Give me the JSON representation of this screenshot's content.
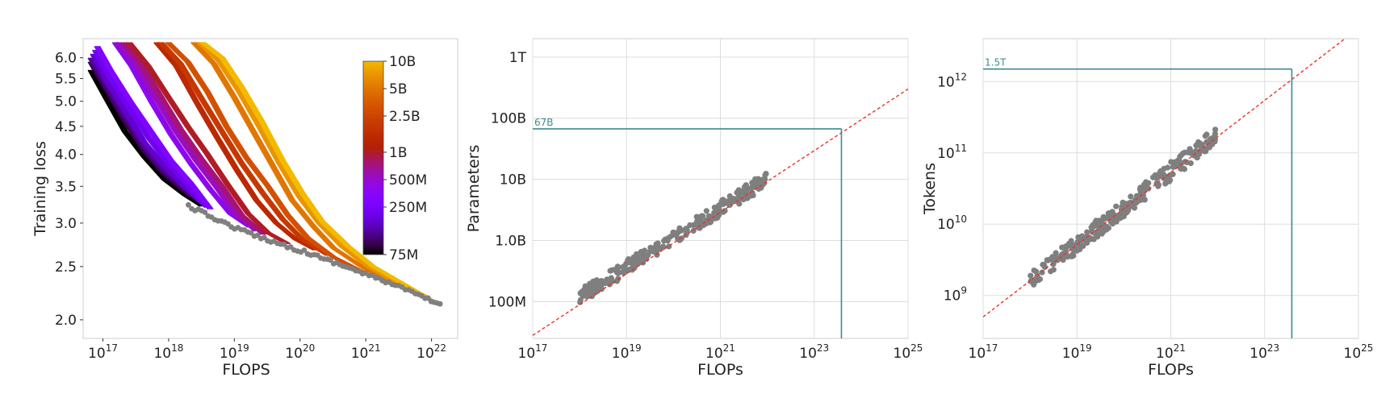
{
  "chart_data": [
    {
      "type": "line",
      "xlabel": "FLOPS",
      "ylabel": "Training loss",
      "x_scale": "log",
      "y_scale": "log",
      "xlim": [
        5e+16,
        2.5e+22
      ],
      "ylim": [
        1.85,
        6.5
      ],
      "grid": false,
      "x_ticks": [
        {
          "value": 1e+17,
          "base": "10",
          "exp": "17"
        },
        {
          "value": 1e+18,
          "base": "10",
          "exp": "18"
        },
        {
          "value": 1e+19,
          "base": "10",
          "exp": "19"
        },
        {
          "value": 1e+20,
          "base": "10",
          "exp": "20"
        },
        {
          "value": 1e+21,
          "base": "10",
          "exp": "21"
        },
        {
          "value": 1e+22,
          "base": "10",
          "exp": "22"
        }
      ],
      "y_ticks": [
        {
          "value": 2.0,
          "label": "2.0"
        },
        {
          "value": 2.5,
          "label": "2.5"
        },
        {
          "value": 3.0,
          "label": "3.0"
        },
        {
          "value": 3.5,
          "label": "3.5"
        },
        {
          "value": 4.0,
          "label": "4.0"
        },
        {
          "value": 4.5,
          "label": "4.5"
        },
        {
          "value": 5.0,
          "label": "5.0"
        },
        {
          "value": 5.5,
          "label": "5.5"
        },
        {
          "value": 6.0,
          "label": "6.0"
        }
      ],
      "colorbar": {
        "scale": "log",
        "range": [
          75000000.0,
          10000000000.0
        ],
        "colormap": "gnuplot",
        "ticks": [
          {
            "value": 10000000000.0,
            "label": "10B"
          },
          {
            "value": 5000000000.0,
            "label": "5B"
          },
          {
            "value": 2500000000.0,
            "label": "2.5B"
          },
          {
            "value": 1000000000.0,
            "label": "1B"
          },
          {
            "value": 500000000.0,
            "label": "500M"
          },
          {
            "value": 250000000.0,
            "label": "250M"
          },
          {
            "value": 75000000.0,
            "label": "75M"
          }
        ]
      },
      "series": [
        {
          "params": 75000000.0,
          "x": [
            6e+16,
            1e+17,
            2e+17,
            4e+17,
            8e+17,
            1.6e+18,
            3e+18
          ],
          "y": [
            5.7,
            5.1,
            4.4,
            3.95,
            3.6,
            3.38,
            3.22
          ]
        },
        {
          "params": 100000000.0,
          "x": [
            6e+16,
            1e+17,
            2e+17,
            4e+17,
            8e+17,
            1.6e+18,
            3.2e+18
          ],
          "y": [
            5.9,
            5.3,
            4.6,
            4.05,
            3.68,
            3.43,
            3.24
          ]
        },
        {
          "params": 130000000.0,
          "x": [
            6e+16,
            1e+17,
            2e+17,
            4e+17,
            8e+17,
            1.6e+18,
            3.3e+18
          ],
          "y": [
            6.0,
            5.4,
            4.7,
            4.12,
            3.73,
            3.47,
            3.23
          ]
        },
        {
          "params": 170000000.0,
          "x": [
            6.5e+16,
            1e+17,
            2e+17,
            4e+17,
            8e+17,
            1.6e+18,
            3.4e+18
          ],
          "y": [
            6.1,
            5.5,
            4.8,
            4.2,
            3.8,
            3.5,
            3.22
          ]
        },
        {
          "params": 220000000.0,
          "x": [
            7e+16,
            1.1e+17,
            2.2e+17,
            4.5e+17,
            9e+17,
            1.8e+18,
            3.6e+18
          ],
          "y": [
            6.2,
            5.6,
            4.9,
            4.3,
            3.85,
            3.52,
            3.2
          ]
        },
        {
          "params": 300000000.0,
          "x": [
            7.5e+16,
            1.2e+17,
            2.4e+17,
            5e+17,
            1e+18,
            2e+18,
            4e+18
          ],
          "y": [
            6.3,
            5.7,
            5.0,
            4.4,
            3.9,
            3.55,
            3.18
          ]
        },
        {
          "params": 400000000.0,
          "x": [
            1.4e+17,
            2.5e+17,
            5e+17,
            1e+18,
            2e+18,
            4e+18,
            8e+18,
            1.6e+19
          ],
          "y": [
            6.4,
            5.8,
            5.0,
            4.35,
            3.85,
            3.45,
            3.12,
            2.95
          ]
        },
        {
          "params": 550000000.0,
          "x": [
            1.6e+17,
            3e+17,
            6e+17,
            1.2e+18,
            2.4e+18,
            5e+18,
            1e+19,
            2e+19
          ],
          "y": [
            6.4,
            5.8,
            5.05,
            4.4,
            3.9,
            3.48,
            3.1,
            2.9
          ]
        },
        {
          "params": 750000000.0,
          "x": [
            1.9e+17,
            3.5e+17,
            7e+17,
            1.4e+18,
            2.8e+18,
            6e+18,
            1.2e+19,
            2.6e+19
          ],
          "y": [
            6.4,
            5.85,
            5.1,
            4.45,
            3.95,
            3.5,
            3.1,
            2.86
          ]
        },
        {
          "params": 1000000000.0,
          "x": [
            2.3e+17,
            4.5e+17,
            9e+17,
            1.8e+18,
            3.6e+18,
            7e+18,
            1.5e+19,
            3e+19,
            6e+19
          ],
          "y": [
            6.4,
            5.8,
            5.1,
            4.5,
            4.0,
            3.55,
            3.12,
            2.88,
            2.75
          ]
        },
        {
          "params": 1400000000.0,
          "x": [
            6e+17,
            1.2e+18,
            2.4e+18,
            5e+18,
            1e+19,
            2e+19,
            4e+19,
            8e+19,
            1.6e+20
          ],
          "y": [
            6.4,
            5.8,
            5.0,
            4.3,
            3.75,
            3.3,
            3.0,
            2.8,
            2.68
          ]
        },
        {
          "params": 2000000000.0,
          "x": [
            7e+17,
            1.4e+18,
            2.8e+18,
            6e+18,
            1.2e+19,
            2.5e+19,
            5e+19,
            1e+20,
            2.5e+20
          ],
          "y": [
            6.4,
            5.85,
            5.1,
            4.4,
            3.85,
            3.4,
            3.05,
            2.8,
            2.62
          ]
        },
        {
          "params": 3000000000.0,
          "x": [
            9e+17,
            1.8e+18,
            3.6e+18,
            7e+18,
            1.4e+19,
            3e+19,
            6e+19,
            1.2e+20,
            3e+20,
            8e+20
          ],
          "y": [
            6.4,
            5.9,
            5.2,
            4.5,
            3.95,
            3.5,
            3.1,
            2.82,
            2.6,
            2.45
          ]
        },
        {
          "params": 5000000000.0,
          "x": [
            2.2e+18,
            4.5e+18,
            9e+18,
            1.8e+19,
            3.6e+19,
            7e+19,
            1.5e+20,
            3e+20,
            8e+20,
            2e+21,
            5e+21
          ],
          "y": [
            6.4,
            5.85,
            5.1,
            4.4,
            3.8,
            3.3,
            2.95,
            2.7,
            2.5,
            2.35,
            2.25
          ]
        },
        {
          "params": 7000000000.0,
          "x": [
            2.7e+18,
            5.5e+18,
            1.1e+19,
            2.2e+19,
            4.5e+19,
            9e+19,
            1.8e+20,
            4e+20,
            1e+21,
            3e+21,
            8e+21
          ],
          "y": [
            6.4,
            5.9,
            5.2,
            4.5,
            3.85,
            3.35,
            3.0,
            2.72,
            2.5,
            2.32,
            2.2
          ]
        },
        {
          "params": 10000000000.0,
          "x": [
            3e+18,
            6e+18,
            1.2e+19,
            2.4e+19,
            5e+19,
            1e+20,
            2e+20,
            5e+20,
            1.2e+21,
            4e+21,
            1.2e+22
          ],
          "y": [
            6.4,
            6.0,
            5.3,
            4.6,
            3.9,
            3.4,
            3.02,
            2.72,
            2.5,
            2.3,
            2.13
          ]
        }
      ],
      "frontier": {
        "x": [
          2e+18,
          4e+18,
          8e+18,
          1.6e+19,
          3.2e+19,
          6.4e+19,
          1.3e+20,
          2.6e+20,
          5e+20,
          1e+21,
          2e+21,
          4e+21,
          8e+21,
          1.5e+22
        ],
        "y": [
          3.22,
          3.1,
          2.98,
          2.88,
          2.8,
          2.72,
          2.65,
          2.57,
          2.5,
          2.42,
          2.35,
          2.27,
          2.19,
          2.12
        ]
      }
    },
    {
      "type": "scatter",
      "xlabel": "FLOPs",
      "ylabel": "Parameters",
      "x_scale": "log",
      "y_scale": "log",
      "xlim": [
        1e+17,
        1e+25
      ],
      "ylim": [
        25000000.0,
        2000000000000.0
      ],
      "grid": true,
      "x_ticks": [
        {
          "value": 1e+17,
          "base": "10",
          "exp": "17"
        },
        {
          "value": 1e+19,
          "base": "10",
          "exp": "19"
        },
        {
          "value": 1e+21,
          "base": "10",
          "exp": "21"
        },
        {
          "value": 1e+23,
          "base": "10",
          "exp": "23"
        },
        {
          "value": 1e+25,
          "base": "10",
          "exp": "25"
        }
      ],
      "y_ticks": [
        {
          "value": 100000000.0,
          "label": "100M"
        },
        {
          "value": 1000000000.0,
          "label": "1.0B"
        },
        {
          "value": 10000000000.0,
          "label": "10B"
        },
        {
          "value": 100000000000.0,
          "label": "100B"
        },
        {
          "value": 1000000000000.0,
          "label": "1T"
        }
      ],
      "fit": {
        "x": [
          1e+17,
          1e+25
        ],
        "y": [
          28000000.0,
          300000000000.0
        ]
      },
      "projection": {
        "x": 3.8e+23,
        "y": 67000000000.0,
        "label": "67B"
      },
      "points": {
        "x_range": [
          1e+18,
          1e+22
        ],
        "y_at_x_min": 120000000.0,
        "y_at_x_max": 10000000000.0,
        "count": 260,
        "spread": 0.12
      }
    },
    {
      "type": "scatter",
      "xlabel": "FLOPs",
      "ylabel": "Tokens",
      "x_scale": "log",
      "y_scale": "log",
      "xlim": [
        1e+17,
        1e+25
      ],
      "ylim": [
        250000000.0,
        4000000000000.0
      ],
      "grid": true,
      "x_ticks": [
        {
          "value": 1e+17,
          "base": "10",
          "exp": "17"
        },
        {
          "value": 1e+19,
          "base": "10",
          "exp": "19"
        },
        {
          "value": 1e+21,
          "base": "10",
          "exp": "21"
        },
        {
          "value": 1e+23,
          "base": "10",
          "exp": "23"
        },
        {
          "value": 1e+25,
          "base": "10",
          "exp": "25"
        }
      ],
      "y_ticks": [
        {
          "value": 1000000000.0,
          "base": "10",
          "exp": "9"
        },
        {
          "value": 10000000000.0,
          "base": "10",
          "exp": "10"
        },
        {
          "value": 100000000000.0,
          "base": "10",
          "exp": "11"
        },
        {
          "value": 1000000000000.0,
          "base": "10",
          "exp": "12"
        }
      ],
      "fit": {
        "x": [
          1e+17,
          1e+25
        ],
        "y": [
          500000000.0,
          5600000000000.0
        ]
      },
      "projection": {
        "x": 3.8e+23,
        "y": 1500000000000.0,
        "label": "1.5T"
      },
      "points": {
        "x_range": [
          1e+18,
          1e+22
        ],
        "y_at_x_min": 1600000000.0,
        "y_at_x_max": 180000000000.0,
        "count": 260,
        "spread": 0.12
      }
    }
  ]
}
